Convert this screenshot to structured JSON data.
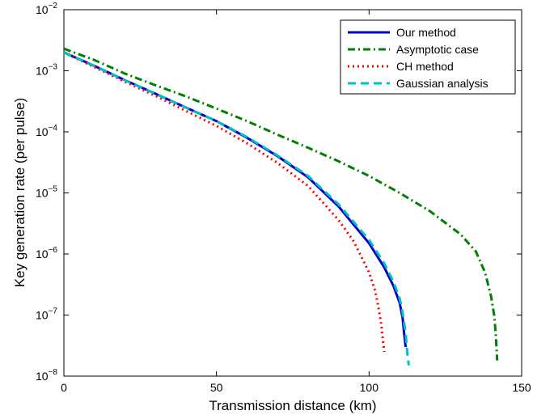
{
  "chart_data": {
    "type": "line",
    "title": "",
    "xlabel": "Transmission distance (km)",
    "ylabel": "Key generation rate (per pulse)",
    "xlim": [
      0,
      150
    ],
    "ylim": [
      1e-08,
      0.01
    ],
    "yscale": "log",
    "grid": false,
    "legend_position": "top-right",
    "x_ticks": [
      {
        "value": 0,
        "label": "0"
      },
      {
        "value": 50,
        "label": "50"
      },
      {
        "value": 100,
        "label": "100"
      },
      {
        "value": 150,
        "label": "150"
      }
    ],
    "y_ticks": [
      {
        "value": 1e-08,
        "base": "10",
        "exp": "−8"
      },
      {
        "value": 1e-07,
        "base": "10",
        "exp": "−7"
      },
      {
        "value": 1e-06,
        "base": "10",
        "exp": "−6"
      },
      {
        "value": 1e-05,
        "base": "10",
        "exp": "−5"
      },
      {
        "value": 0.0001,
        "base": "10",
        "exp": "−4"
      },
      {
        "value": 0.001,
        "base": "10",
        "exp": "−3"
      },
      {
        "value": 0.01,
        "base": "10",
        "exp": "−2"
      }
    ],
    "series": [
      {
        "name": "Our method",
        "color": "#0000cc",
        "style": "solid",
        "points": [
          [
            0,
            0.002
          ],
          [
            10,
            0.0012
          ],
          [
            20,
            0.0007
          ],
          [
            30,
            0.00042
          ],
          [
            40,
            0.00025
          ],
          [
            50,
            0.00015
          ],
          [
            60,
            8e-05
          ],
          [
            70,
            4e-05
          ],
          [
            80,
            1.8e-05
          ],
          [
            90,
            6e-06
          ],
          [
            100,
            1.5e-06
          ],
          [
            105,
            6e-07
          ],
          [
            108,
            3e-07
          ],
          [
            110,
            1.6e-07
          ],
          [
            111,
            9e-08
          ],
          [
            111.5,
            5e-08
          ],
          [
            112,
            3e-08
          ]
        ]
      },
      {
        "name": "Asymptotic case",
        "color": "#007f00",
        "style": "dashdot",
        "points": [
          [
            0,
            0.0023
          ],
          [
            10,
            0.0015
          ],
          [
            20,
            0.0009
          ],
          [
            30,
            0.00058
          ],
          [
            40,
            0.00038
          ],
          [
            50,
            0.00024
          ],
          [
            60,
            0.00015
          ],
          [
            70,
            9e-05
          ],
          [
            80,
            5.5e-05
          ],
          [
            90,
            3.3e-05
          ],
          [
            100,
            1.9e-05
          ],
          [
            110,
            1e-05
          ],
          [
            120,
            5e-06
          ],
          [
            130,
            2.1e-06
          ],
          [
            135,
            1.1e-06
          ],
          [
            138,
            5e-07
          ],
          [
            140,
            2e-07
          ],
          [
            141,
            1e-07
          ],
          [
            141.5,
            5e-08
          ],
          [
            142,
            1.8e-08
          ]
        ]
      },
      {
        "name": "CH method",
        "color": "#ff0000",
        "style": "dotted",
        "points": [
          [
            0,
            0.002
          ],
          [
            10,
            0.00115
          ],
          [
            20,
            0.00066
          ],
          [
            30,
            0.00039
          ],
          [
            40,
            0.00022
          ],
          [
            50,
            0.000125
          ],
          [
            60,
            6.5e-05
          ],
          [
            70,
            3.1e-05
          ],
          [
            80,
            1.3e-05
          ],
          [
            90,
            3.6e-06
          ],
          [
            95,
            1.6e-06
          ],
          [
            100,
            5e-07
          ],
          [
            102,
            2.5e-07
          ],
          [
            103,
            1.4e-07
          ],
          [
            104,
            7e-08
          ],
          [
            104.5,
            4e-08
          ],
          [
            105,
            2.5e-08
          ]
        ]
      },
      {
        "name": "Gaussian analysis",
        "color": "#00bfbf",
        "style": "dashed",
        "points": [
          [
            0,
            0.002
          ],
          [
            10,
            0.0012
          ],
          [
            20,
            0.0007
          ],
          [
            30,
            0.00042
          ],
          [
            40,
            0.00025
          ],
          [
            50,
            0.00015
          ],
          [
            60,
            8.2e-05
          ],
          [
            70,
            4.1e-05
          ],
          [
            80,
            1.9e-05
          ],
          [
            90,
            6.5e-06
          ],
          [
            100,
            1.7e-06
          ],
          [
            105,
            7e-07
          ],
          [
            108,
            3.5e-07
          ],
          [
            110,
            1.9e-07
          ],
          [
            111,
            1.1e-07
          ],
          [
            112,
            5e-08
          ],
          [
            112.5,
            2.5e-08
          ],
          [
            113,
            1.5e-08
          ]
        ]
      }
    ]
  }
}
